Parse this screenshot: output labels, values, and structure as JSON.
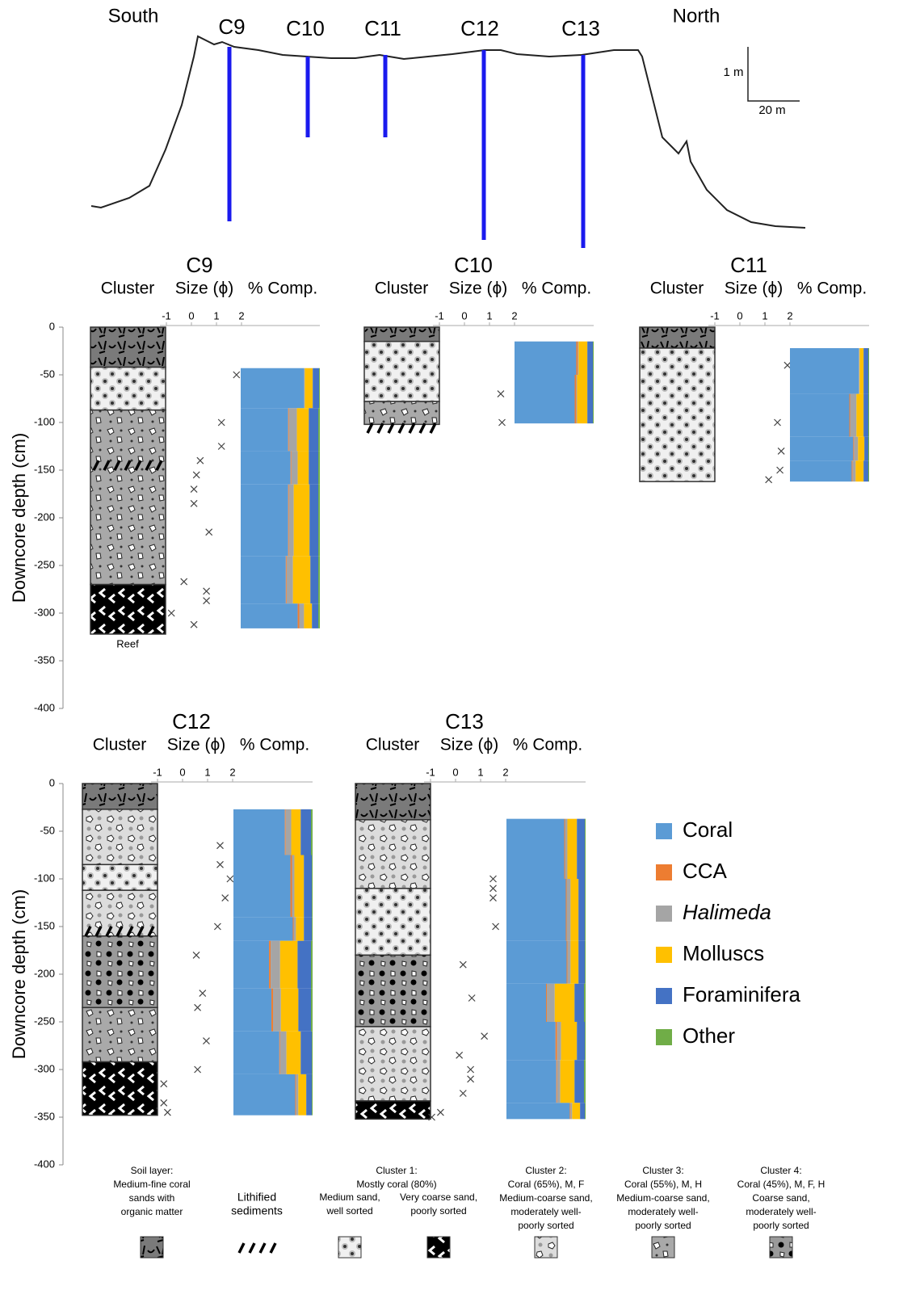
{
  "profile": {
    "west": "South",
    "east": "North",
    "scale_v": "1 m",
    "scale_h": "20 m"
  },
  "headers": [
    "Cluster",
    "Size (ϕ)",
    "% Comp."
  ],
  "depth_axis": {
    "label": "Downcore depth (cm)",
    "ylim": [
      0,
      -400
    ],
    "yticks": [
      0,
      -50,
      -100,
      -150,
      -200,
      -250,
      -300,
      -350,
      -400
    ]
  },
  "size_xlim": [
    -1,
    2
  ],
  "size_ticks": [
    -1,
    0,
    1,
    2
  ],
  "comp_xlim": [
    0,
    100
  ],
  "components": [
    {
      "name": "Coral",
      "color": "#5b9bd5"
    },
    {
      "name": "CCA",
      "color": "#ed7d31"
    },
    {
      "name": "Halimeda",
      "color": "#a5a5a5",
      "italic": true
    },
    {
      "name": "Molluscs",
      "color": "#ffc000"
    },
    {
      "name": "Foraminifera",
      "color": "#4472c4"
    },
    {
      "name": "Other",
      "color": "#70ad47"
    }
  ],
  "cores": [
    {
      "name": "C9",
      "bottom_label": "Reef",
      "layers": [
        [
          0,
          -42,
          0
        ],
        [
          -42,
          -87,
          2
        ],
        [
          -87,
          -270,
          5
        ],
        [
          -270,
          -322,
          3
        ]
      ],
      "lithified": [
        -145
      ],
      "size": [
        [
          -50,
          1.8
        ],
        [
          -100,
          1.2
        ],
        [
          -125,
          1.2
        ],
        [
          -140,
          0.35
        ],
        [
          -155,
          0.2
        ],
        [
          -170,
          0.1
        ],
        [
          -185,
          0.1
        ],
        [
          -215,
          0.7
        ],
        [
          -267,
          -0.3
        ],
        [
          -277,
          0.6
        ],
        [
          -287,
          0.6
        ],
        [
          -300,
          -0.8
        ],
        [
          -312,
          0.1
        ]
      ],
      "comp": [
        {
          "top": -43,
          "bottom": -85,
          "values": [
            80,
            0,
            1,
            10,
            8,
            1
          ]
        },
        {
          "top": -85,
          "bottom": -130,
          "values": [
            60,
            1,
            10,
            15,
            12,
            2
          ]
        },
        {
          "top": -130,
          "bottom": -165,
          "values": [
            63,
            1,
            8,
            14,
            12,
            2
          ]
        },
        {
          "top": -165,
          "bottom": -240,
          "values": [
            60,
            1,
            6,
            20,
            11,
            2
          ]
        },
        {
          "top": -240,
          "bottom": -290,
          "values": [
            57,
            1,
            8,
            22,
            10,
            2
          ]
        },
        {
          "top": -290,
          "bottom": -316,
          "values": [
            72,
            2,
            6,
            10,
            8,
            2
          ]
        }
      ]
    },
    {
      "name": "C10",
      "layers": [
        [
          0,
          -15,
          0
        ],
        [
          -15,
          -78,
          2
        ],
        [
          -78,
          -102,
          5
        ]
      ],
      "lithified": [
        -106
      ],
      "size": [
        [
          -70,
          1.45
        ],
        [
          -100,
          1.5
        ]
      ],
      "comp": [
        {
          "top": -15,
          "bottom": -50,
          "values": [
            78,
            2,
            1,
            11,
            7,
            1
          ]
        },
        {
          "top": -50,
          "bottom": -101,
          "values": [
            76,
            2,
            1,
            13,
            7,
            1
          ]
        }
      ]
    },
    {
      "name": "C11",
      "layers": [
        [
          0,
          -22,
          0
        ],
        [
          -22,
          -162,
          2
        ]
      ],
      "lithified": [],
      "size": [
        [
          -40,
          1.9
        ],
        [
          -100,
          1.5
        ],
        [
          -130,
          1.65
        ],
        [
          -150,
          1.6
        ],
        [
          -160,
          1.15
        ]
      ],
      "comp": [
        {
          "top": -22,
          "bottom": -70,
          "values": [
            87,
            0,
            1,
            5,
            6,
            1
          ]
        },
        {
          "top": -70,
          "bottom": -115,
          "values": [
            75,
            1,
            8,
            9,
            6,
            1
          ]
        },
        {
          "top": -115,
          "bottom": -140,
          "values": [
            80,
            1,
            5,
            8,
            5,
            1
          ]
        },
        {
          "top": -140,
          "bottom": -162,
          "values": [
            78,
            1,
            4,
            10,
            6,
            1
          ]
        }
      ]
    },
    {
      "name": "C12",
      "layers": [
        [
          0,
          -27,
          0
        ],
        [
          -27,
          -85,
          4
        ],
        [
          -85,
          -112,
          2
        ],
        [
          -112,
          -160,
          4
        ],
        [
          -160,
          -235,
          6
        ],
        [
          -235,
          -292,
          5
        ],
        [
          -292,
          -348,
          3
        ]
      ],
      "lithified": [
        -155
      ],
      "size": [
        [
          -65,
          1.5
        ],
        [
          -85,
          1.5
        ],
        [
          -100,
          1.9
        ],
        [
          -120,
          1.7
        ],
        [
          -150,
          1.4
        ],
        [
          -180,
          0.55
        ],
        [
          -220,
          0.8
        ],
        [
          -235,
          0.6
        ],
        [
          -270,
          0.95
        ],
        [
          -300,
          0.6
        ],
        [
          -315,
          -0.75
        ],
        [
          -335,
          -0.75
        ],
        [
          -345,
          -0.6
        ]
      ],
      "comp": [
        {
          "top": -27,
          "bottom": -75,
          "values": [
            65,
            1,
            7,
            12,
            13,
            2
          ]
        },
        {
          "top": -75,
          "bottom": -140,
          "values": [
            72,
            2,
            3,
            12,
            10,
            1
          ]
        },
        {
          "top": -140,
          "bottom": -165,
          "values": [
            75,
            1,
            3,
            10,
            10,
            1
          ]
        },
        {
          "top": -165,
          "bottom": -215,
          "values": [
            45,
            2,
            12,
            22,
            17,
            2
          ]
        },
        {
          "top": -215,
          "bottom": -260,
          "values": [
            48,
            2,
            10,
            22,
            16,
            2
          ]
        },
        {
          "top": -260,
          "bottom": -305,
          "values": [
            58,
            1,
            8,
            18,
            14,
            1
          ]
        },
        {
          "top": -305,
          "bottom": -348,
          "values": [
            78,
            1,
            3,
            10,
            7,
            1
          ]
        }
      ]
    },
    {
      "name": "C13",
      "layers": [
        [
          0,
          -38,
          0
        ],
        [
          -38,
          -110,
          4
        ],
        [
          -110,
          -180,
          2
        ],
        [
          -180,
          -255,
          6
        ],
        [
          -255,
          -333,
          4
        ],
        [
          -333,
          -352,
          3
        ]
      ],
      "lithified": [],
      "size": [
        [
          -100,
          1.5
        ],
        [
          -110,
          1.5
        ],
        [
          -120,
          1.5
        ],
        [
          -150,
          1.6
        ],
        [
          -190,
          0.3
        ],
        [
          -225,
          0.65
        ],
        [
          -265,
          1.15
        ],
        [
          -285,
          0.15
        ],
        [
          -300,
          0.6
        ],
        [
          -310,
          0.6
        ],
        [
          -325,
          0.3
        ],
        [
          -345,
          -0.6
        ],
        [
          -350,
          -0.95
        ]
      ],
      "comp": [
        {
          "top": -37,
          "bottom": -100,
          "values": [
            73,
            1,
            3,
            12,
            10,
            1
          ]
        },
        {
          "top": -100,
          "bottom": -165,
          "values": [
            75,
            1,
            5,
            10,
            8,
            1
          ]
        },
        {
          "top": -165,
          "bottom": -210,
          "values": [
            76,
            1,
            4,
            10,
            8,
            1
          ]
        },
        {
          "top": -210,
          "bottom": -250,
          "values": [
            50,
            1,
            10,
            25,
            12,
            2
          ]
        },
        {
          "top": -250,
          "bottom": -290,
          "values": [
            62,
            2,
            5,
            20,
            10,
            1
          ]
        },
        {
          "top": -290,
          "bottom": -335,
          "values": [
            63,
            1,
            4,
            18,
            12,
            2
          ]
        },
        {
          "top": -335,
          "bottom": -352,
          "values": [
            80,
            1,
            2,
            10,
            6,
            1
          ]
        }
      ]
    }
  ],
  "pattern_key": {
    "cluster1_header": [
      "Cluster 1:",
      "Mostly coral (80%)"
    ],
    "items": [
      {
        "lines": [
          "Soil layer:",
          "Medium-fine coral",
          "sands with",
          "organic matter"
        ]
      },
      {
        "lines": [
          "Lithified",
          "sediments"
        ]
      },
      {
        "lines": [
          "Medium sand,",
          "well sorted"
        ]
      },
      {
        "lines": [
          "Very coarse sand,",
          "poorly sorted"
        ]
      },
      {
        "lines": [
          "Cluster 2:",
          "Coral (65%), M, F",
          "Medium-coarse sand,",
          "moderately well-",
          "poorly sorted"
        ]
      },
      {
        "lines": [
          "Cluster 3:",
          "Coral (55%), M, H",
          "Medium-coarse sand,",
          "moderately well-",
          "poorly sorted"
        ]
      },
      {
        "lines": [
          "Cluster 4:",
          "Coral (45%), M, F, H",
          "Coarse sand,",
          "moderately well-",
          "poorly sorted"
        ]
      }
    ]
  }
}
